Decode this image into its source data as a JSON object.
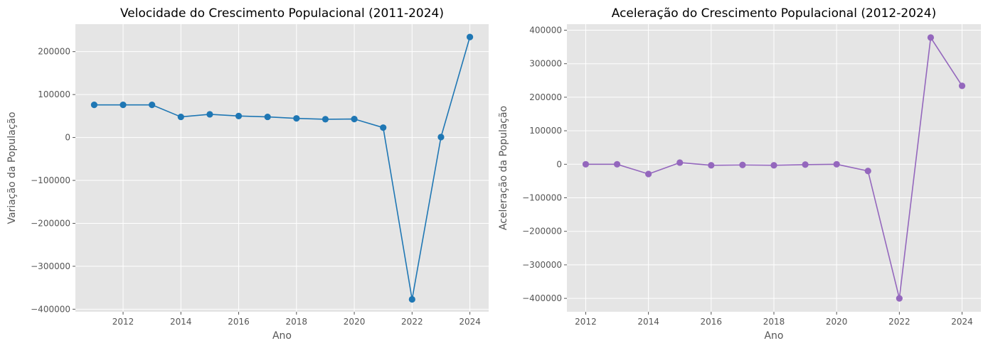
{
  "chart_data": [
    {
      "type": "line",
      "title": "Velocidade do Crescimento Populacional (2011-2024)",
      "xlabel": "Ano",
      "ylabel": "Variação da População",
      "color": "#1f77b4",
      "marker": "circle",
      "grid": true,
      "background": "#e5e5e5",
      "x": [
        2011,
        2012,
        2013,
        2014,
        2015,
        2016,
        2017,
        2018,
        2019,
        2020,
        2021,
        2022,
        2023,
        2024
      ],
      "y": [
        76000,
        76000,
        76000,
        48000,
        54000,
        50000,
        48000,
        44500,
        42500,
        43000,
        23000,
        -377000,
        1000,
        234000
      ],
      "xlim": [
        2010.35,
        2024.65
      ],
      "ylim": [
        -406000,
        264000
      ],
      "xticks": [
        2012,
        2014,
        2016,
        2018,
        2020,
        2022,
        2024
      ],
      "yticks": [
        -400000,
        -300000,
        -200000,
        -100000,
        0,
        100000,
        200000
      ],
      "xtick_labels": [
        "2012",
        "2014",
        "2016",
        "2018",
        "2020",
        "2022",
        "2024"
      ],
      "ytick_labels": [
        "−400000",
        "−300000",
        "−200000",
        "−100000",
        "0",
        "100000",
        "200000"
      ]
    },
    {
      "type": "line",
      "title": "Aceleração do Crescimento Populacional (2012-2024)",
      "xlabel": "Ano",
      "ylabel": "Aceleração da População",
      "color": "#9467bd",
      "marker": "circle",
      "grid": true,
      "background": "#e5e5e5",
      "x": [
        2012,
        2013,
        2014,
        2015,
        2016,
        2017,
        2018,
        2019,
        2020,
        2021,
        2022,
        2023,
        2024
      ],
      "y": [
        0,
        0,
        -29000,
        5000,
        -3000,
        -2000,
        -3000,
        -1000,
        0,
        -20000,
        -400000,
        378000,
        234000
      ],
      "xlim": [
        2011.4,
        2024.6
      ],
      "ylim": [
        -440000,
        418000
      ],
      "xticks": [
        2012,
        2014,
        2016,
        2018,
        2020,
        2022,
        2024
      ],
      "yticks": [
        -400000,
        -300000,
        -200000,
        -100000,
        0,
        100000,
        200000,
        300000,
        400000
      ],
      "xtick_labels": [
        "2012",
        "2014",
        "2016",
        "2018",
        "2020",
        "2022",
        "2024"
      ],
      "ytick_labels": [
        "−400000",
        "−300000",
        "−200000",
        "−100000",
        "0",
        "100000",
        "200000",
        "300000",
        "400000"
      ]
    }
  ]
}
